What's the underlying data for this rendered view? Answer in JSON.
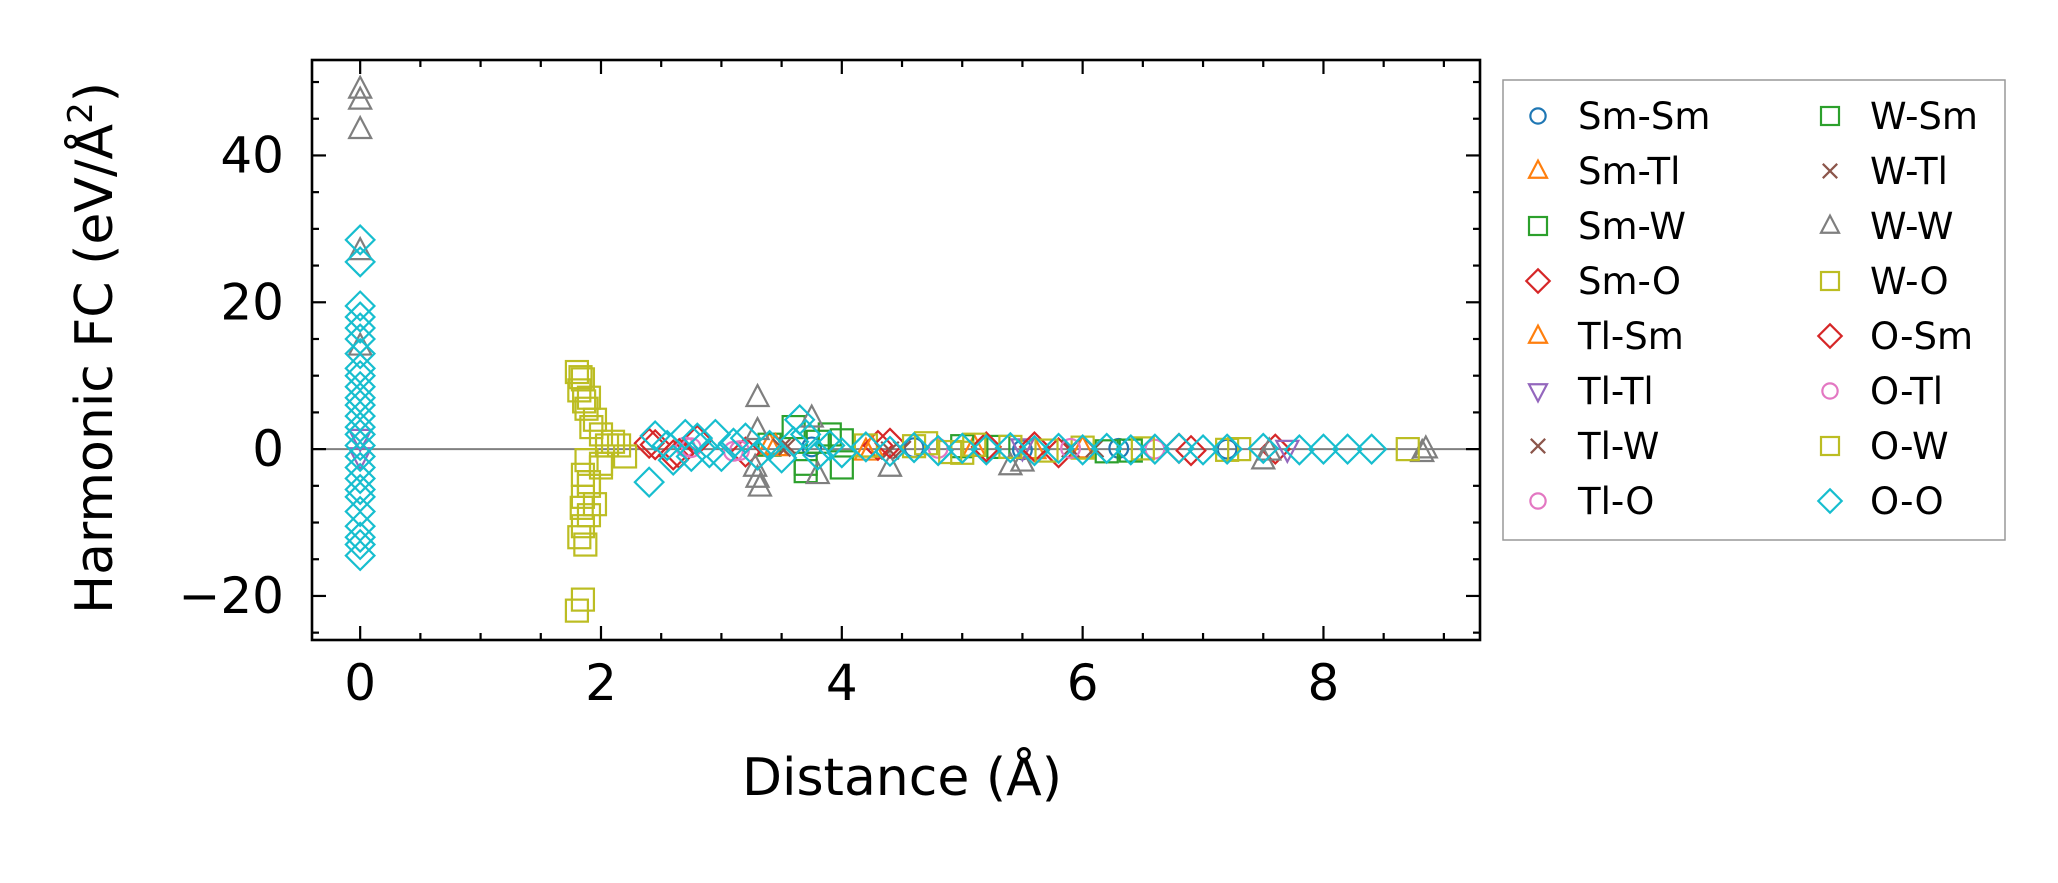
{
  "chart_data": {
    "type": "scatter",
    "title": "",
    "xlabel": "Distance (Å)",
    "ylabel": "Harmonic FC (eV/Å²)",
    "ylabel_base": "Harmonic FC (eV/Å",
    "ylabel_sup": "2",
    "ylabel_close": ")",
    "xlim": [
      -0.4,
      9.3
    ],
    "ylim": [
      -26,
      53
    ],
    "xticks": [
      0,
      2,
      4,
      6,
      8
    ],
    "xtick_labels": [
      "0",
      "2",
      "4",
      "6",
      "8"
    ],
    "yticks": [
      -20,
      0,
      20,
      40
    ],
    "ytick_labels": [
      "−20",
      "0",
      "20",
      "40"
    ],
    "zero_line": true,
    "grid": false,
    "legend_position": "outside-right",
    "series": [
      {
        "name": "Sm-Sm",
        "marker": "circle",
        "color": "#1f77b4",
        "points": [
          [
            3.75,
            0.3
          ],
          [
            4.6,
            0.2
          ],
          [
            5.5,
            -0.1
          ],
          [
            6.3,
            0.1
          ],
          [
            7.2,
            0.0
          ]
        ]
      },
      {
        "name": "Sm-Tl",
        "marker": "triangle-up",
        "color": "#ff7f0e",
        "points": [
          [
            3.4,
            0.5
          ],
          [
            4.2,
            -0.3
          ],
          [
            5.1,
            0.2
          ],
          [
            6.0,
            0.0
          ]
        ]
      },
      {
        "name": "Sm-W",
        "marker": "square",
        "color": "#2ca02c",
        "points": [
          [
            3.4,
            0.6
          ],
          [
            3.7,
            -2.0
          ],
          [
            4.0,
            1.2
          ],
          [
            5.3,
            0.3
          ],
          [
            6.4,
            -0.2
          ]
        ]
      },
      {
        "name": "Sm-O",
        "marker": "diamond",
        "color": "#d62728",
        "points": [
          [
            2.4,
            0.8
          ],
          [
            2.6,
            -0.8
          ],
          [
            2.8,
            1.2
          ],
          [
            3.2,
            -0.4
          ],
          [
            4.3,
            0.5
          ],
          [
            5.2,
            0.3
          ],
          [
            5.8,
            -0.5
          ],
          [
            6.8,
            0.1
          ],
          [
            7.6,
            0.0
          ]
        ]
      },
      {
        "name": "Tl-Sm",
        "marker": "triangle-up",
        "color": "#ff7f0e",
        "points": [
          [
            3.45,
            0.3
          ],
          [
            4.25,
            0.1
          ],
          [
            5.6,
            -0.1
          ]
        ]
      },
      {
        "name": "Tl-Tl",
        "marker": "triangle-down",
        "color": "#9467bd",
        "points": [
          [
            0,
            1.5
          ],
          [
            0,
            -1.0
          ],
          [
            5.5,
            0.2
          ],
          [
            7.7,
            0.0
          ]
        ]
      },
      {
        "name": "Tl-W",
        "marker": "x",
        "color": "#8c564b",
        "points": [
          [
            3.5,
            0.2
          ],
          [
            4.4,
            -0.2
          ],
          [
            6.1,
            0.1
          ]
        ]
      },
      {
        "name": "Tl-O",
        "marker": "circle",
        "color": "#e377c2",
        "points": [
          [
            2.7,
            0.3
          ],
          [
            3.1,
            -0.3
          ],
          [
            4.8,
            0.1
          ],
          [
            6.6,
            0.0
          ]
        ]
      },
      {
        "name": "W-Sm",
        "marker": "square",
        "color": "#2ca02c",
        "points": [
          [
            3.6,
            3.0
          ],
          [
            3.7,
            -3.0
          ],
          [
            3.9,
            2.0
          ],
          [
            4.0,
            -2.5
          ],
          [
            3.8,
            1.0
          ],
          [
            5.0,
            0.4
          ],
          [
            6.2,
            -0.3
          ]
        ]
      },
      {
        "name": "W-Tl",
        "marker": "x",
        "color": "#8c564b",
        "points": [
          [
            3.55,
            0.4
          ],
          [
            4.5,
            -0.1
          ],
          [
            5.9,
            0.1
          ]
        ]
      },
      {
        "name": "W-W",
        "marker": "triangle-up",
        "color": "#7f7f7f",
        "points": [
          [
            0,
            49
          ],
          [
            0,
            47.5
          ],
          [
            0,
            43.5
          ],
          [
            0,
            27
          ],
          [
            0,
            14
          ],
          [
            3.3,
            7
          ],
          [
            3.3,
            2.5
          ],
          [
            3.28,
            -2.5
          ],
          [
            3.3,
            -4
          ],
          [
            3.32,
            -5.2
          ],
          [
            3.75,
            4.2
          ],
          [
            3.8,
            -3.5
          ],
          [
            4.4,
            -2.5
          ],
          [
            5.4,
            -2.3
          ],
          [
            5.5,
            -1.8
          ],
          [
            7.5,
            -1.5
          ],
          [
            7.55,
            -0.3
          ],
          [
            8.85,
            0.0
          ],
          [
            8.82,
            -0.5
          ]
        ]
      },
      {
        "name": "W-O",
        "marker": "square",
        "color": "#bcbd22",
        "points": [
          [
            1.8,
            10.5
          ],
          [
            1.85,
            9.5
          ],
          [
            1.82,
            8.0
          ],
          [
            1.9,
            7.0
          ],
          [
            1.88,
            5.5
          ],
          [
            1.95,
            4.0
          ],
          [
            2.0,
            2.0
          ],
          [
            2.1,
            1.0
          ],
          [
            2.2,
            -1.0
          ],
          [
            2.0,
            -2.5
          ],
          [
            1.85,
            -3.5
          ],
          [
            1.9,
            -5.0
          ],
          [
            1.85,
            -6.5
          ],
          [
            1.95,
            -7.5
          ],
          [
            1.9,
            -9.0
          ],
          [
            1.85,
            -10.5
          ],
          [
            1.82,
            -12.0
          ],
          [
            1.87,
            -13.0
          ],
          [
            1.8,
            -22.0
          ],
          [
            1.85,
            -20.5
          ],
          [
            4.2,
            0.5
          ],
          [
            4.7,
            0.8
          ],
          [
            5.0,
            -0.5
          ],
          [
            5.4,
            0.3
          ],
          [
            6.0,
            0.2
          ],
          [
            7.3,
            0.0
          ],
          [
            8.7,
            0.0
          ]
        ]
      },
      {
        "name": "O-Sm",
        "marker": "diamond",
        "color": "#d62728",
        "points": [
          [
            2.45,
            0.6
          ],
          [
            2.65,
            -0.6
          ],
          [
            4.4,
            0.8
          ],
          [
            5.6,
            0.3
          ],
          [
            6.9,
            -0.2
          ]
        ]
      },
      {
        "name": "O-Tl",
        "marker": "circle",
        "color": "#e377c2",
        "points": [
          [
            2.75,
            0.2
          ],
          [
            3.15,
            -0.2
          ],
          [
            5.9,
            0.1
          ]
        ]
      },
      {
        "name": "O-W",
        "marker": "square",
        "color": "#bcbd22",
        "points": [
          [
            1.83,
            9.8
          ],
          [
            1.86,
            6.5
          ],
          [
            1.92,
            3.0
          ],
          [
            2.05,
            0.5
          ],
          [
            1.88,
            -1.5
          ],
          [
            1.9,
            -4.5
          ],
          [
            1.84,
            -8.0
          ],
          [
            2.0,
            -2.0
          ],
          [
            2.15,
            0.5
          ],
          [
            4.6,
            0.4
          ],
          [
            4.9,
            -0.4
          ],
          [
            5.1,
            0.6
          ],
          [
            5.7,
            -0.2
          ],
          [
            6.5,
            0.1
          ],
          [
            7.2,
            -0.1
          ]
        ]
      },
      {
        "name": "O-O",
        "marker": "diamond",
        "color": "#17becf",
        "points": [
          [
            0,
            28.5
          ],
          [
            0,
            25.5
          ],
          [
            0,
            19.5
          ],
          [
            0,
            18
          ],
          [
            0,
            16.5
          ],
          [
            0,
            15
          ],
          [
            0,
            13
          ],
          [
            0,
            11
          ],
          [
            0,
            10
          ],
          [
            0,
            8.5
          ],
          [
            0,
            7
          ],
          [
            0,
            6
          ],
          [
            0,
            4.5
          ],
          [
            0,
            3
          ],
          [
            0,
            2
          ],
          [
            0,
            0.5
          ],
          [
            0,
            -1
          ],
          [
            0,
            -2.5
          ],
          [
            0,
            -4
          ],
          [
            0,
            -5.5
          ],
          [
            0,
            -6.5
          ],
          [
            0,
            -8.5
          ],
          [
            0,
            -10.5
          ],
          [
            0,
            -12
          ],
          [
            0,
            -13
          ],
          [
            0,
            -14.5
          ],
          [
            2.4,
            -4.5
          ],
          [
            2.45,
            1.8
          ],
          [
            2.55,
            0.5
          ],
          [
            2.6,
            -1.5
          ],
          [
            2.7,
            2.0
          ],
          [
            2.75,
            -1.0
          ],
          [
            2.8,
            1.5
          ],
          [
            2.9,
            -0.5
          ],
          [
            2.95,
            2.0
          ],
          [
            3.0,
            -1.0
          ],
          [
            3.1,
            0.8
          ],
          [
            3.2,
            1.5
          ],
          [
            3.3,
            -0.8
          ],
          [
            3.4,
            0.5
          ],
          [
            3.5,
            -1.2
          ],
          [
            3.6,
            1.0
          ],
          [
            3.65,
            4.0
          ],
          [
            3.7,
            2.0
          ],
          [
            3.8,
            -0.8
          ],
          [
            3.9,
            0.5
          ],
          [
            4.0,
            -0.5
          ],
          [
            4.2,
            0.3
          ],
          [
            4.4,
            -0.3
          ],
          [
            4.6,
            0.2
          ],
          [
            4.8,
            -0.2
          ],
          [
            5.0,
            0.1
          ],
          [
            5.2,
            -0.1
          ],
          [
            5.4,
            0.2
          ],
          [
            5.6,
            -0.2
          ],
          [
            5.8,
            0.1
          ],
          [
            6.0,
            -0.1
          ],
          [
            6.2,
            0.1
          ],
          [
            6.4,
            -0.1
          ],
          [
            6.6,
            0.0
          ],
          [
            6.8,
            0.1
          ],
          [
            7.0,
            -0.1
          ],
          [
            7.2,
            0.0
          ],
          [
            7.5,
            0.1
          ],
          [
            7.8,
            -0.1
          ],
          [
            8.0,
            0.0
          ],
          [
            8.2,
            0.0
          ],
          [
            8.4,
            0.0
          ]
        ]
      }
    ]
  }
}
